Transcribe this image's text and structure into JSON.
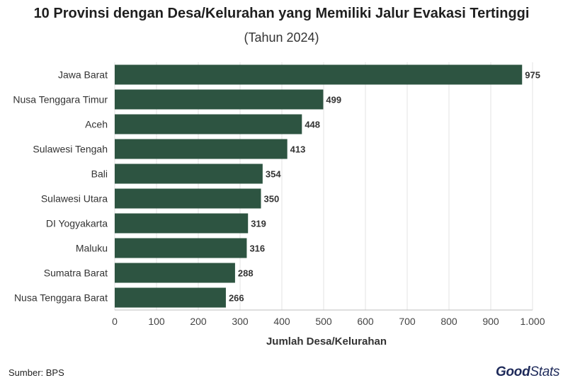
{
  "chart_data": {
    "type": "bar",
    "orientation": "horizontal",
    "title": "10 Provinsi dengan Desa/Kelurahan yang Memiliki Jalur Evakasi Tertinggi",
    "subtitle": "(Tahun 2024)",
    "xlabel": "Jumlah Desa/Kelurahan",
    "ylabel": "",
    "categories": [
      "Jawa Barat",
      "Nusa Tenggara Timur",
      "Aceh",
      "Sulawesi Tengah",
      "Bali",
      "Sulawesi Utara",
      "DI Yogyakarta",
      "Maluku",
      "Sumatra Barat",
      "Nusa Tenggara Barat"
    ],
    "values": [
      975,
      499,
      448,
      413,
      354,
      350,
      319,
      316,
      288,
      266
    ],
    "xlim": [
      0,
      1000
    ],
    "ticks": [
      0,
      100,
      200,
      300,
      400,
      500,
      600,
      700,
      800,
      900,
      1000
    ],
    "tick_labels": [
      "0",
      "100",
      "200",
      "300",
      "400",
      "500",
      "600",
      "700",
      "800",
      "900",
      "1.000"
    ],
    "grid": true,
    "bar_color": "#2d5441"
  },
  "footer": {
    "source": "Sumber: BPS",
    "brand_good": "Good",
    "brand_stats": "Stats"
  }
}
